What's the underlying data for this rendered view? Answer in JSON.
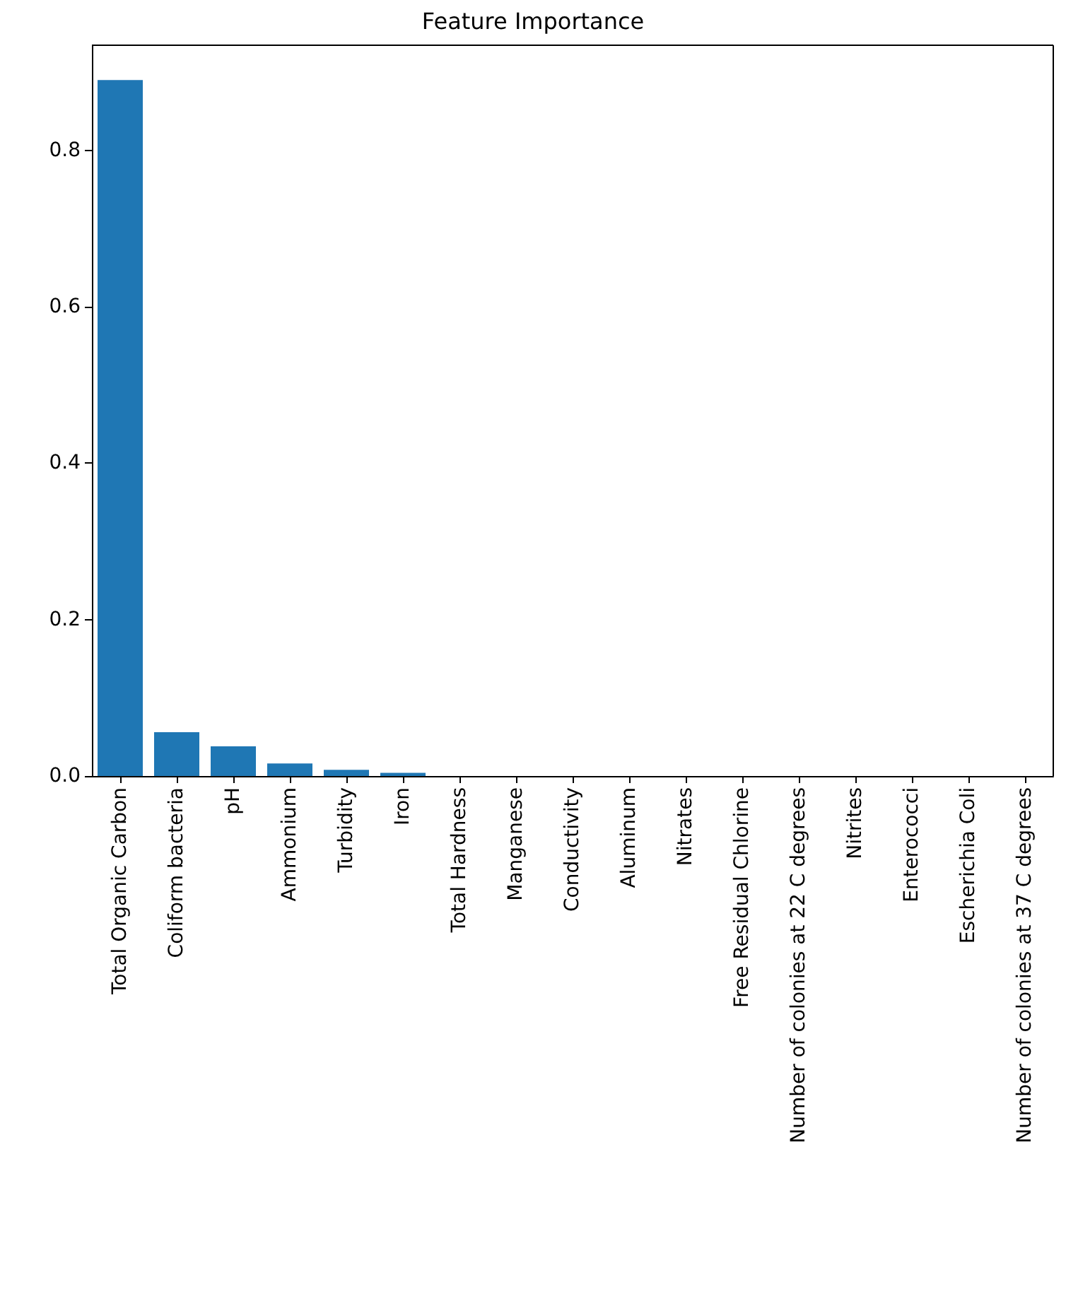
{
  "chart_data": {
    "type": "bar",
    "title": "Feature Importance",
    "categories": [
      "Total Organic Carbon",
      "Coliform bacteria",
      "pH",
      "Ammonium",
      "Turbidity",
      "Iron",
      "Total Hardness",
      "Manganese",
      "Conductivity",
      "Aluminum",
      "Nitrates",
      "Free Residual Chlorine",
      "Number of colonies at 22 C degrees",
      "Nitrites",
      "Enterococci",
      "Escherichia Coli",
      "Number of colonies at 37 C degrees"
    ],
    "values": [
      0.89,
      0.056,
      0.038,
      0.016,
      0.008,
      0.004,
      0,
      0,
      0,
      0,
      0,
      0,
      0,
      0,
      0,
      0,
      0
    ],
    "color": "#1f77b4",
    "ylim": [
      0,
      0.9345
    ],
    "yticks": [
      {
        "value": 0,
        "label": "0.0"
      },
      0.2,
      0.4,
      0.6,
      0.8
    ],
    "grid": false
  }
}
